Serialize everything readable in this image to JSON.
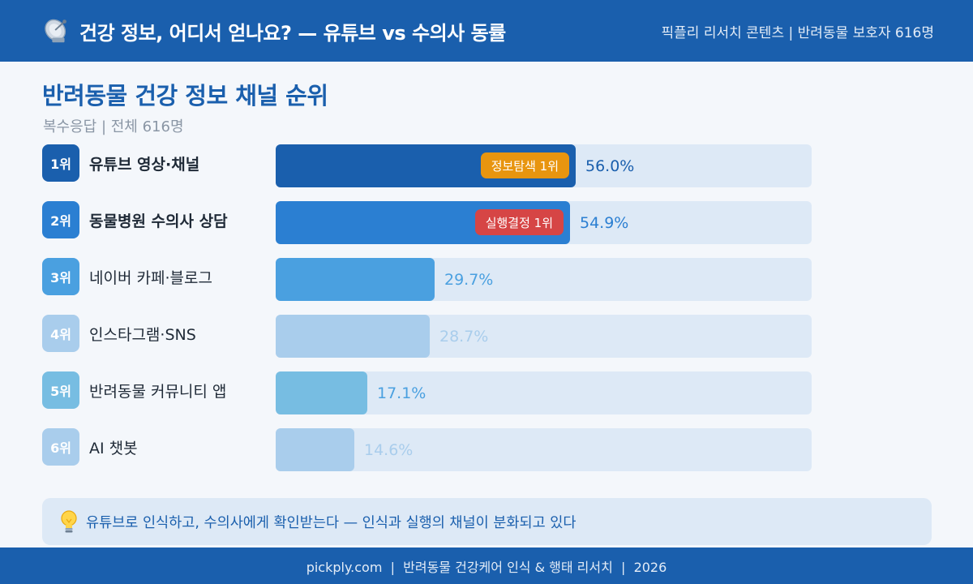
{
  "header": {
    "title": "건강 정보, 어디서 얻나요? — 유튜브 vs 수의사 동률",
    "meta": "픽플리 리서치 콘텐츠 | 반려동물 보호자 616명"
  },
  "chart_data": {
    "type": "bar",
    "orientation": "horizontal",
    "title": "반려동물 건강 정보 채널 순위",
    "subtitle": "복수응답 | 전체 616명",
    "categories": [
      "유튜브 영상·채널",
      "동물병원 수의사 상담",
      "네이버 카페·블로그",
      "인스타그램·SNS",
      "반려동물 커뮤니티 앱",
      "AI 챗봇"
    ],
    "values": [
      56.0,
      54.9,
      29.7,
      28.7,
      17.1,
      14.6
    ],
    "unit": "%",
    "xlim": [
      0,
      100
    ],
    "grid": false,
    "legend": "none",
    "items": [
      {
        "rank": "1위",
        "label": "유튜브 영상·채널",
        "value": 56.0,
        "value_label": "56.0%",
        "color": "#1a5fad",
        "badge_color": "#1a5fad",
        "value_color": "#1a5fad",
        "bold": true,
        "tag": "정보탐색 1위",
        "tag_color": "#e8950f"
      },
      {
        "rank": "2위",
        "label": "동물병원 수의사 상담",
        "value": 54.9,
        "value_label": "54.9%",
        "color": "#2b7fd2",
        "badge_color": "#2b7fd2",
        "value_color": "#2b7fd2",
        "bold": true,
        "tag": "실행결정 1위",
        "tag_color": "#d64545"
      },
      {
        "rank": "3위",
        "label": "네이버 카페·블로그",
        "value": 29.7,
        "value_label": "29.7%",
        "color": "#4aa0e0",
        "badge_color": "#4aa0e0",
        "value_color": "#4aa0e0",
        "bold": false,
        "tag": "",
        "tag_color": ""
      },
      {
        "rank": "4위",
        "label": "인스타그램·SNS",
        "value": 28.7,
        "value_label": "28.7%",
        "color": "#a9cdec",
        "badge_color": "#a9cdec",
        "value_color": "#a9cdec",
        "bold": false,
        "tag": "",
        "tag_color": ""
      },
      {
        "rank": "5위",
        "label": "반려동물 커뮤니티 앱",
        "value": 17.1,
        "value_label": "17.1%",
        "color": "#77bde2",
        "badge_color": "#77bde2",
        "value_color": "#4aa0e0",
        "bold": false,
        "tag": "",
        "tag_color": ""
      },
      {
        "rank": "6위",
        "label": "AI 챗봇",
        "value": 14.6,
        "value_label": "14.6%",
        "color": "#a9cdec",
        "badge_color": "#a9cdec",
        "value_color": "#a9cdec",
        "bold": false,
        "tag": "",
        "tag_color": ""
      }
    ]
  },
  "insight": {
    "icon": "lightbulb-icon",
    "text": "유튜브로 인식하고, 수의사에게 확인받는다 — 인식과 실행의 채널이 분화되고 있다"
  },
  "footer": {
    "text": "pickply.com  |  반려동물 건강케어 인식 & 행태 리서치  |  2026"
  },
  "colors": {
    "brand": "#1a5fad",
    "track": "#dde9f6",
    "background": "#f4f7fb"
  }
}
